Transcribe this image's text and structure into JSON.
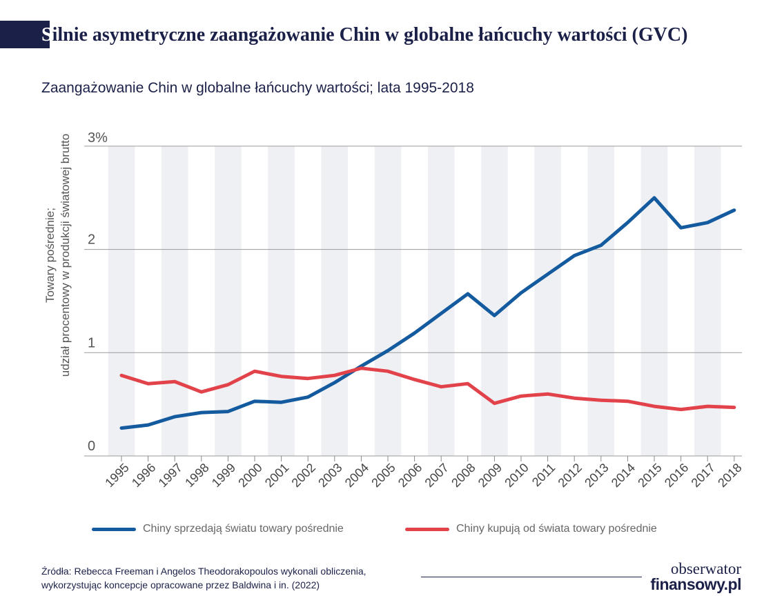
{
  "header": {
    "title_initial": "S",
    "title_rest": "ilnie asymetryczne zaangażowanie Chin w globalne łańcuchy wartości (GVC)",
    "subtitle": "Zaangażowanie Chin w globalne łańcuchy wartości; lata 1995-2018"
  },
  "chart_data": {
    "type": "line",
    "x": [
      "1995",
      "1996",
      "1997",
      "1998",
      "1999",
      "2000",
      "2001",
      "2002",
      "2003",
      "2004",
      "2005",
      "2006",
      "2007",
      "2008",
      "2009",
      "2010",
      "2011",
      "2012",
      "2013",
      "2014",
      "2015",
      "2016",
      "2017",
      "2018"
    ],
    "series": [
      {
        "name": "Chiny sprzedają światu towary pośrednie",
        "color": "#145a9e",
        "values": [
          0.27,
          0.3,
          0.38,
          0.42,
          0.43,
          0.53,
          0.52,
          0.57,
          0.71,
          0.87,
          1.02,
          1.19,
          1.38,
          1.57,
          1.36,
          1.58,
          1.76,
          1.94,
          2.04,
          2.26,
          2.5,
          2.21,
          2.26,
          2.38
        ]
      },
      {
        "name": "Chiny kupują od świata towary pośrednie",
        "color": "#e2434b",
        "values": [
          0.78,
          0.7,
          0.72,
          0.62,
          0.69,
          0.82,
          0.77,
          0.75,
          0.78,
          0.85,
          0.82,
          0.74,
          0.67,
          0.7,
          0.51,
          0.58,
          0.6,
          0.56,
          0.54,
          0.53,
          0.48,
          0.45,
          0.48,
          0.47
        ]
      }
    ],
    "ylim": [
      0,
      3
    ],
    "yticks": [
      {
        "value": 0,
        "label": "0"
      },
      {
        "value": 1,
        "label": "1"
      },
      {
        "value": 2,
        "label": "2"
      },
      {
        "value": 3,
        "label": "3%"
      }
    ],
    "ylabel_line1": "Towary pośrednie;",
    "ylabel_line2": "udział procentowy w produkcji światowej brutto",
    "xlabel": "",
    "grid": true,
    "alternating_column_bands": true,
    "legend_position": "bottom"
  },
  "footer": {
    "source_line1": "Źródła: Rebecca Freeman i Angelos Theodorakopoulos wykonali obliczenia,",
    "source_line2": "wykorzystując koncepcje opracowane przez Baldwina i in. (2022)",
    "logo_line1": "obserwator",
    "logo_line2": "finansowy.pl"
  },
  "colors": {
    "title": "#1b2048",
    "band": "#eef0f4",
    "grid": "#9a9a9a"
  }
}
